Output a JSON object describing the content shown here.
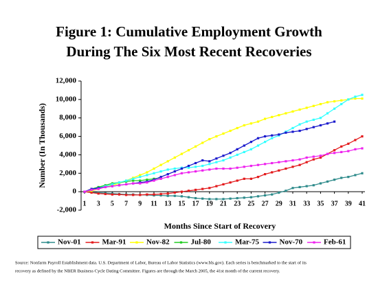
{
  "chart_data": {
    "type": "line",
    "title": "Figure 1: Cumulative Employment Growth",
    "subtitle": "During The Six Most Recent Recoveries",
    "x_label": "Months Since Start of Recovery",
    "y_label": "Number (In Thousands)",
    "source": "Source: Nonfarm Payroll Establishment data. U.S. Department of Labor, Bureau of Labor Statistics (www.bls.gov). Each series is benchmarked to the start of its",
    "source2": "recovery as defined by the NBER Business Cycle Dating Committee. Figures are through the March 2005, the 41st month of the current recovery.",
    "x": [
      1,
      2,
      3,
      4,
      5,
      6,
      7,
      8,
      9,
      10,
      11,
      12,
      13,
      14,
      15,
      16,
      17,
      18,
      19,
      20,
      21,
      22,
      23,
      24,
      25,
      26,
      27,
      28,
      29,
      30,
      31,
      32,
      33,
      34,
      35,
      36,
      37,
      38,
      39,
      40,
      41
    ],
    "xlim": [
      1,
      41
    ],
    "xticks": [
      1,
      3,
      5,
      7,
      9,
      11,
      13,
      15,
      17,
      19,
      21,
      23,
      25,
      27,
      29,
      31,
      33,
      35,
      37,
      39,
      41
    ],
    "ylim": [
      -2000,
      12000
    ],
    "yticks": [
      {
        "value": -2000,
        "label": "-2,000"
      },
      0,
      {
        "value": 2000,
        "label": "2,000"
      },
      {
        "value": 4000,
        "label": "4,000"
      },
      {
        "value": 6000,
        "label": "6,000"
      },
      {
        "value": 8000,
        "label": "8,000"
      },
      {
        "value": 10000,
        "label": "10,000"
      },
      {
        "value": 12000,
        "label": "12,000"
      }
    ],
    "series": [
      {
        "name": "Nov-01",
        "color": "#2e8b8b",
        "values": [
          0,
          -50,
          -100,
          -150,
          -200,
          -250,
          -300,
          -300,
          -350,
          -350,
          -400,
          -400,
          -450,
          -450,
          -500,
          -600,
          -700,
          -750,
          -800,
          -800,
          -800,
          -750,
          -700,
          -650,
          -600,
          -500,
          -400,
          -300,
          -100,
          100,
          400,
          500,
          600,
          700,
          900,
          1100,
          1300,
          1500,
          1600,
          1800,
          2000
        ]
      },
      {
        "name": "Mar-91",
        "color": "#e31a1c",
        "values": [
          0,
          -100,
          -200,
          -250,
          -300,
          -300,
          -350,
          -350,
          -350,
          -300,
          -300,
          -250,
          -200,
          -100,
          0,
          100,
          200,
          300,
          400,
          600,
          800,
          1000,
          1200,
          1400,
          1400,
          1600,
          1900,
          2100,
          2300,
          2500,
          2700,
          2900,
          3200,
          3500,
          3700,
          4100,
          4500,
          4900,
          5200,
          5600,
          6000
        ]
      },
      {
        "name": "Nov-82",
        "color": "#ffff00",
        "values": [
          0,
          100,
          300,
          500,
          700,
          900,
          1200,
          1500,
          1800,
          2100,
          2500,
          2900,
          3300,
          3700,
          4100,
          4500,
          4900,
          5300,
          5700,
          6000,
          6300,
          6600,
          6900,
          7200,
          7400,
          7600,
          7900,
          8100,
          8300,
          8500,
          8700,
          8900,
          9100,
          9300,
          9500,
          9700,
          9800,
          9900,
          10000,
          10100,
          10100
        ]
      },
      {
        "name": "Jul-80",
        "color": "#22cc22",
        "values": [
          0,
          300,
          500,
          700,
          900,
          1000,
          1100,
          1200,
          1200,
          1300,
          1400,
          1500,
          null,
          null,
          null,
          null,
          null,
          null,
          null,
          null,
          null,
          null,
          null,
          null,
          null,
          null,
          null,
          null,
          null,
          null,
          null,
          null,
          null,
          null,
          null,
          null,
          null,
          null,
          null,
          null,
          null
        ]
      },
      {
        "name": "Mar-75",
        "color": "#33ffff",
        "values": [
          0,
          200,
          400,
          600,
          800,
          1000,
          1200,
          1400,
          1600,
          1800,
          2000,
          2200,
          2400,
          2500,
          2600,
          2600,
          2700,
          2800,
          3000,
          3200,
          3400,
          3700,
          4000,
          4300,
          4600,
          5000,
          5400,
          5800,
          6100,
          6500,
          6900,
          7300,
          7600,
          7800,
          8000,
          8500,
          9000,
          9500,
          10000,
          10300,
          10500
        ]
      },
      {
        "name": "Nov-70",
        "color": "#1a1acc",
        "values": [
          0,
          300,
          400,
          500,
          600,
          700,
          800,
          900,
          1000,
          1100,
          1300,
          1600,
          1900,
          2200,
          2500,
          2800,
          3100,
          3400,
          3300,
          3600,
          3900,
          4200,
          4600,
          5000,
          5400,
          5800,
          6000,
          6100,
          6200,
          6400,
          6500,
          6600,
          6800,
          7000,
          7200,
          7400,
          7600,
          null,
          null,
          null,
          null
        ]
      },
      {
        "name": "Feb-61",
        "color": "#ee22ee",
        "values": [
          0,
          200,
          300,
          500,
          600,
          700,
          800,
          900,
          900,
          1000,
          1200,
          1400,
          1600,
          1800,
          2000,
          2100,
          2200,
          2300,
          2400,
          2500,
          2500,
          2500,
          2600,
          2700,
          2800,
          2900,
          3000,
          3100,
          3200,
          3300,
          3400,
          3500,
          3700,
          3800,
          3900,
          4100,
          4200,
          4300,
          4400,
          4600,
          4700
        ]
      }
    ]
  }
}
